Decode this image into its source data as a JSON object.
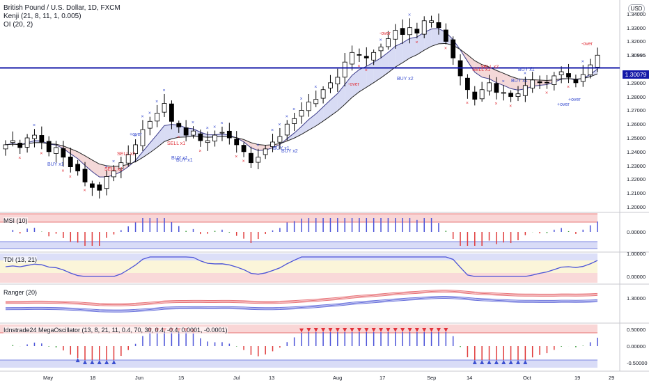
{
  "header": {
    "title": "British Pound / U.S. Dollar, 1D, FXCM",
    "indicator1": "Kenji (21, 8, 11, 1, 0.005)",
    "indicator2": "OI (20, 2)"
  },
  "currency_button": "USD",
  "current_price_tag": "1.30079",
  "last_price_label": "1.30995",
  "colors": {
    "up": "#ffffff",
    "down": "#000000",
    "price_line": "#1418a8",
    "sell": "#e0323a",
    "buy": "#3c50d0",
    "cloud_blue": "#c8ccf0",
    "cloud_red": "#f0c8c8"
  },
  "y_axis_labels": [
    "1.34000",
    "1.33000",
    "1.32000",
    "1.30995",
    "1.29000",
    "1.28000",
    "1.27000",
    "1.26000",
    "1.25000",
    "1.24000",
    "1.23000",
    "1.22000",
    "1.21000",
    "1.20000"
  ],
  "x_axis_labels": [
    "May",
    "18",
    "Jun",
    "15",
    "Jul",
    "13",
    "Aug",
    "17",
    "Sep",
    "14",
    "Oct",
    "19",
    "29"
  ],
  "panels": [
    {
      "name": "MSI (10)",
      "y_labels": [
        "0.00000"
      ]
    },
    {
      "name": "TDI (13, 21)",
      "y_labels": [
        "1.00000",
        "0.00000"
      ]
    },
    {
      "name": "Ranger (20)",
      "y_labels": [
        "1.30000"
      ]
    },
    {
      "name": "Idnstrade24 MegaOscillator (13, 8, 21, 11, 0.4, 70, 30, 0.4, -0.4, 0.0001, -0.0001)",
      "y_labels": [
        "0.50000",
        "0.00000",
        "-0.50000"
      ]
    }
  ],
  "signals": [
    {
      "text": "SELL x2",
      "type": "sell"
    },
    {
      "text": "SELL x1",
      "type": "sell"
    },
    {
      "text": "SELL x1",
      "type": "sell"
    },
    {
      "text": "SELL x2",
      "type": "sell"
    },
    {
      "text": "SELL x1",
      "type": "sell"
    },
    {
      "text": "BUY x1",
      "type": "buy"
    },
    {
      "text": "BUY x1",
      "type": "buy"
    },
    {
      "text": "BUY x1",
      "type": "buy"
    },
    {
      "text": "BUY x1",
      "type": "buy"
    },
    {
      "text": "BUY x1",
      "type": "buy"
    },
    {
      "text": "BUY x1",
      "type": "buy"
    },
    {
      "text": "BUY x2",
      "type": "buy"
    },
    {
      "text": "BUY x2",
      "type": "buy"
    },
    {
      "text": "+over",
      "type": "buy"
    },
    {
      "text": "+over",
      "type": "buy"
    },
    {
      "text": "+over",
      "type": "buy"
    },
    {
      "text": "-over",
      "type": "sell"
    },
    {
      "text": "-over",
      "type": "sell"
    },
    {
      "text": "-over",
      "type": "sell"
    }
  ],
  "chart_data": {
    "type": "candlestick",
    "symbol": "GBPUSD",
    "timeframe": "1D",
    "approx_closes": [
      1.245,
      1.248,
      1.243,
      1.25,
      1.252,
      1.247,
      1.24,
      1.243,
      1.236,
      1.229,
      1.226,
      1.218,
      1.214,
      1.212,
      1.222,
      1.226,
      1.232,
      1.238,
      1.245,
      1.256,
      1.262,
      1.268,
      1.275,
      1.262,
      1.258,
      1.252,
      1.255,
      1.248,
      1.248,
      1.252,
      1.254,
      1.25,
      1.245,
      1.24,
      1.232,
      1.236,
      1.242,
      1.247,
      1.251,
      1.26,
      1.264,
      1.27,
      1.276,
      1.278,
      1.285,
      1.29,
      1.294,
      1.305,
      1.312,
      1.31,
      1.308,
      1.312,
      1.316,
      1.322,
      1.328,
      1.325,
      1.33,
      1.326,
      1.335,
      1.335,
      1.33,
      1.32,
      1.308,
      1.295,
      1.285,
      1.278,
      1.285,
      1.29,
      1.283,
      1.283,
      1.28,
      1.282,
      1.288,
      1.292,
      1.29,
      1.29,
      1.295,
      1.298,
      1.294,
      1.29,
      1.296,
      1.303,
      1.31
    ],
    "y_range": [
      1.2,
      1.345
    ]
  }
}
